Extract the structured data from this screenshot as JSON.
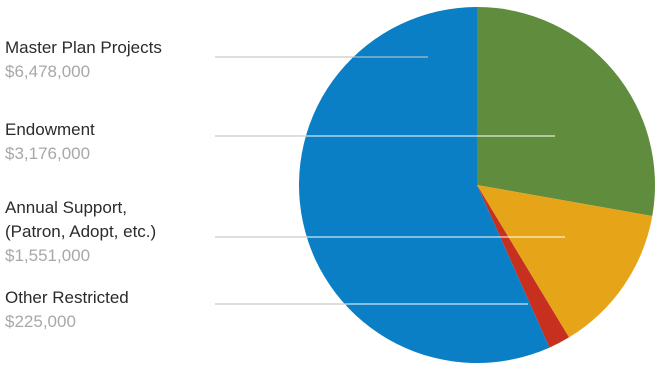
{
  "chart_data": {
    "type": "pie",
    "title": "",
    "start_angle_deg": 0,
    "direction": "clockwise",
    "slices": [
      {
        "label": "Endowment",
        "value_text": "$3,176,000",
        "value": 3176000,
        "color": "#5f8c3d"
      },
      {
        "label": "Annual Support,\n(Patron, Adopt, etc.)",
        "value_text": "$1,551,000",
        "value": 1551000,
        "color": "#e6a419"
      },
      {
        "label": "Other Restricted",
        "value_text": "$225,000",
        "value": 225000,
        "color": "#c7301f"
      },
      {
        "label": "Master Plan Projects",
        "value_text": "$6,478,000",
        "value": 6478000,
        "color": "#0a7fc6"
      }
    ],
    "legend": {
      "placement": "left",
      "order": [
        "Master Plan Projects",
        "Endowment",
        "Annual Support,\n(Patron, Adopt, etc.)",
        "Other Restricted"
      ]
    }
  }
}
